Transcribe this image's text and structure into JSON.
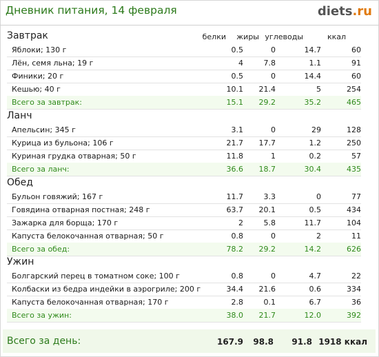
{
  "header": {
    "title": "Дневник питания, 14 февраля",
    "logo_main": "diets",
    "logo_tld": ".ru"
  },
  "columns": {
    "protein": "белки",
    "fat": "жиры",
    "carbs": "углеводы",
    "kcal": "ккал"
  },
  "meals": [
    {
      "title": "Завтрак",
      "items": [
        {
          "name": "Яблоки; 130 г",
          "protein": "0.5",
          "fat": "0",
          "carbs": "14.7",
          "kcal": "60"
        },
        {
          "name": "Лён, семя льна; 19 г",
          "protein": "4",
          "fat": "7.8",
          "carbs": "1.1",
          "kcal": "91"
        },
        {
          "name": "Финики; 20 г",
          "protein": "0.5",
          "fat": "0",
          "carbs": "14.4",
          "kcal": "60"
        },
        {
          "name": "Кешью; 40 г",
          "protein": "10.1",
          "fat": "21.4",
          "carbs": "5",
          "kcal": "254"
        }
      ],
      "total": {
        "name": "Всего за завтрак:",
        "protein": "15.1",
        "fat": "29.2",
        "carbs": "35.2",
        "kcal": "465"
      }
    },
    {
      "title": "Ланч",
      "items": [
        {
          "name": "Апельсин; 345 г",
          "protein": "3.1",
          "fat": "0",
          "carbs": "29",
          "kcal": "128"
        },
        {
          "name": "Курица из бульона; 106 г",
          "protein": "21.7",
          "fat": "17.7",
          "carbs": "1.2",
          "kcal": "250"
        },
        {
          "name": "Куриная грудка отварная; 50 г",
          "protein": "11.8",
          "fat": "1",
          "carbs": "0.2",
          "kcal": "57"
        }
      ],
      "total": {
        "name": "Всего за ланч:",
        "protein": "36.6",
        "fat": "18.7",
        "carbs": "30.4",
        "kcal": "435"
      }
    },
    {
      "title": "Обед",
      "items": [
        {
          "name": "Бульон говяжий; 167 г",
          "protein": "11.7",
          "fat": "3.3",
          "carbs": "0",
          "kcal": "77"
        },
        {
          "name": "Говядина отварная постная; 248 г",
          "protein": "63.7",
          "fat": "20.1",
          "carbs": "0.5",
          "kcal": "434"
        },
        {
          "name": "Зажарка для борща; 170 г",
          "protein": "2",
          "fat": "5.8",
          "carbs": "11.7",
          "kcal": "104"
        },
        {
          "name": "Капуста белокочанная отварная; 50 г",
          "protein": "0.8",
          "fat": "0",
          "carbs": "2",
          "kcal": "11"
        }
      ],
      "total": {
        "name": "Всего за обед:",
        "protein": "78.2",
        "fat": "29.2",
        "carbs": "14.2",
        "kcal": "626"
      }
    },
    {
      "title": "Ужин",
      "items": [
        {
          "name": "Болгарский перец в томатном соке; 100 г",
          "protein": "0.8",
          "fat": "0",
          "carbs": "4.7",
          "kcal": "22"
        },
        {
          "name": "Колбаски из бедра индейки в аэрогриле; 200 г",
          "protein": "34.4",
          "fat": "21.6",
          "carbs": "0.6",
          "kcal": "334"
        },
        {
          "name": "Капуста белокочанная отварная; 170 г",
          "protein": "2.8",
          "fat": "0.1",
          "carbs": "6.7",
          "kcal": "36"
        }
      ],
      "total": {
        "name": "Всего за ужин:",
        "protein": "38.0",
        "fat": "21.7",
        "carbs": "12.0",
        "kcal": "392"
      }
    }
  ],
  "day_total": {
    "label": "Всего за день:",
    "protein": "167.9",
    "fat": "98.8",
    "carbs": "91.8",
    "kcal": "1918 ккал"
  },
  "colors": {
    "accent_green": "#2c7a1b",
    "total_text": "#2f8a1b",
    "total_bg": "#f3fbee",
    "logo_tld": "#e07a10"
  }
}
